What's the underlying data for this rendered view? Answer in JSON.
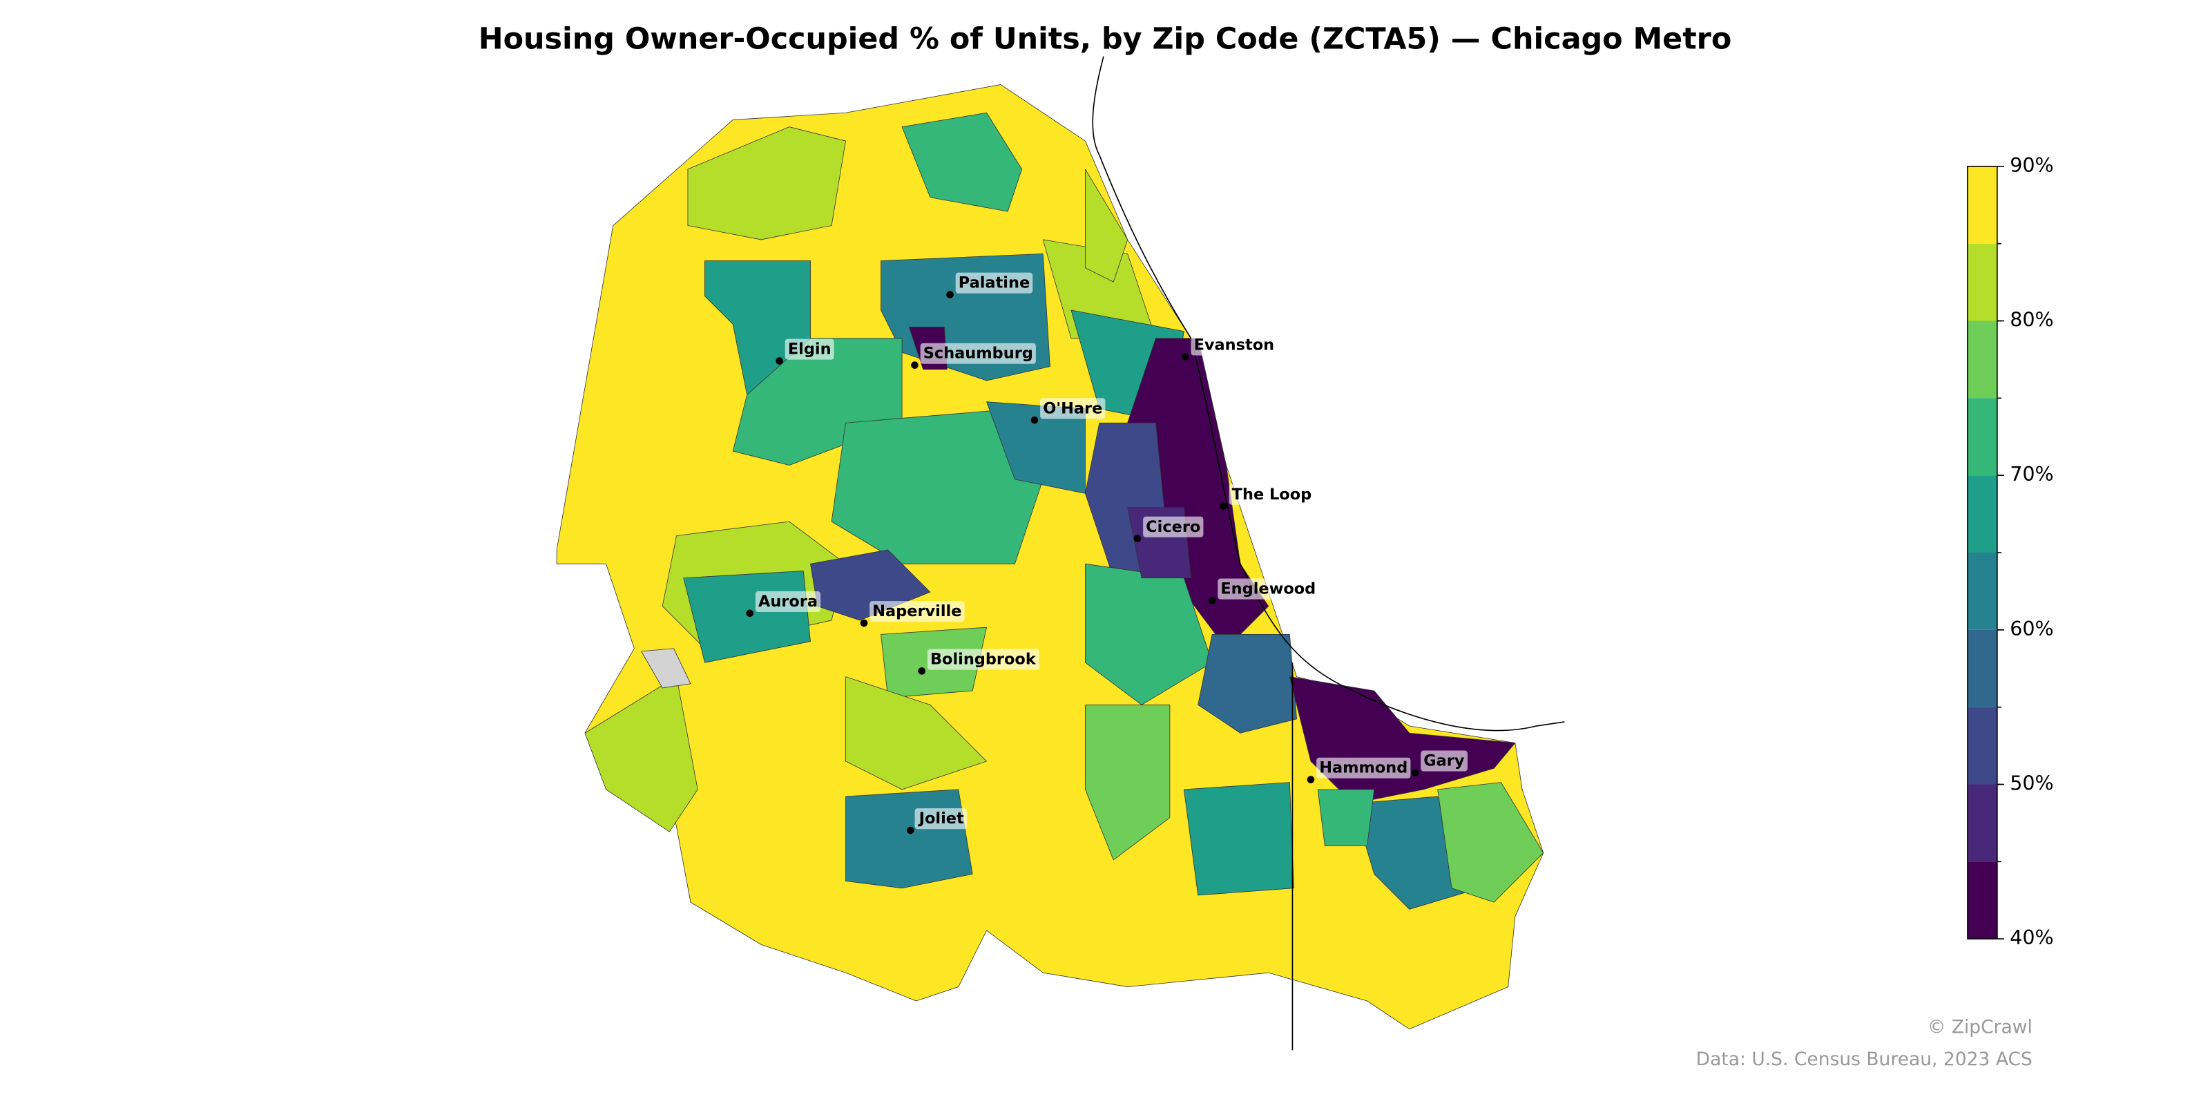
{
  "title": "Housing Owner-Occupied % of Units, by Zip Code (ZCTA5) — Chicago Metro",
  "cities": [
    "Palatine",
    "Elgin",
    "Schaumburg",
    "Evanston",
    "O'Hare",
    "The Loop",
    "Cicero",
    "Englewood",
    "Aurora",
    "Naperville",
    "Bolingbrook",
    "Hammond",
    "Gary",
    "Joliet"
  ],
  "colorbar": {
    "range": [
      40,
      90
    ],
    "ticks": [
      {
        "value": 40,
        "label": "40%"
      },
      {
        "value": 50,
        "label": "50%"
      },
      {
        "value": 60,
        "label": "60%"
      },
      {
        "value": 70,
        "label": "70%"
      },
      {
        "value": 80,
        "label": "80%"
      },
      {
        "value": 90,
        "label": "90%"
      }
    ],
    "colors": [
      "#440154",
      "#482878",
      "#3e4989",
      "#31688e",
      "#26828e",
      "#1f9e89",
      "#35b779",
      "#6ece58",
      "#b5de2b",
      "#fde725"
    ]
  },
  "zip_values": [
    88,
    82,
    72,
    66,
    64,
    74,
    82,
    66,
    42,
    54,
    74,
    60,
    80,
    66,
    52,
    76,
    74,
    58,
    44,
    62,
    78,
    68,
    60,
    82,
    82,
    76,
    46,
    82,
    42,
    70
  ],
  "credits": [
    "© ZipCrawl",
    "Data: U.S. Census Bureau, 2023 ACS"
  ]
}
